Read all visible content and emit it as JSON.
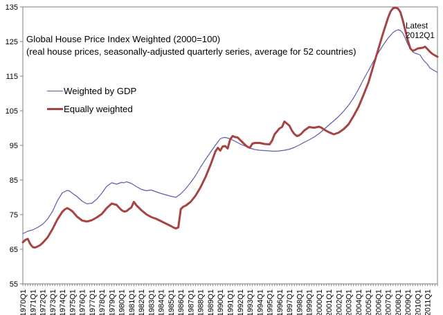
{
  "annotation": {
    "line1": "Latest",
    "line2": "2012Q1"
  },
  "colors": {
    "axis": "#7F7F7F",
    "text": "#000000",
    "background": "#FFFFFF"
  },
  "chart_data": {
    "type": "line",
    "title": "Global House Price Index Weighted (2000=100)",
    "subtitle": "(real house prices, seasonally-adjusted quarterly series, average for 52 countries)",
    "grid": false,
    "legend_position": "inside-top-left",
    "y_axis": {
      "min": 55,
      "max": 135,
      "step": 10,
      "ticks": [
        135,
        125,
        115,
        105,
        95,
        85,
        75,
        65,
        55
      ]
    },
    "x_axis": {
      "unit": "quarter",
      "first": "1970Q1",
      "last": "2012Q1",
      "total_quarters": 168,
      "label_every_quarters": 4,
      "tick_labels": [
        "1970Q1",
        "1971Q1",
        "1972Q1",
        "1973Q1",
        "1974Q1",
        "1975Q1",
        "1976Q1",
        "1977Q1",
        "1978Q1",
        "1979Q1",
        "1980Q1",
        "1981Q1",
        "1982Q1",
        "1983Q1",
        "1984Q1",
        "1985Q1",
        "1986Q1",
        "1987Q1",
        "1988Q1",
        "1989Q1",
        "1990Q1",
        "1991Q1",
        "1992Q1",
        "1993Q1",
        "1994Q1",
        "1995Q1",
        "1996Q1",
        "1997Q1",
        "1998Q1",
        "1999Q1",
        "2000Q1",
        "2001Q1",
        "2002Q1",
        "2003Q1",
        "2004Q1",
        "2005Q1",
        "2006Q1",
        "2007Q1",
        "2008Q1",
        "2009Q1",
        "2010Q1",
        "2011Q1"
      ]
    },
    "series": [
      {
        "name": "Weighted by GDP",
        "color": "#5B5BAD",
        "stroke_width": 1.2,
        "points": [
          [
            0,
            69.5
          ],
          [
            2,
            70.2
          ],
          [
            4,
            70.6
          ],
          [
            6,
            71.3
          ],
          [
            8,
            72.2
          ],
          [
            10,
            73.7
          ],
          [
            12,
            75.9
          ],
          [
            14,
            79.0
          ],
          [
            16,
            81.3
          ],
          [
            18,
            82.0
          ],
          [
            19,
            81.8
          ],
          [
            20,
            81.2
          ],
          [
            22,
            80.2
          ],
          [
            24,
            78.9
          ],
          [
            26,
            78.1
          ],
          [
            28,
            78.3
          ],
          [
            30,
            79.5
          ],
          [
            32,
            81.2
          ],
          [
            34,
            83.2
          ],
          [
            36,
            84.2
          ],
          [
            37,
            84.0
          ],
          [
            38,
            83.8
          ],
          [
            40,
            84.3
          ],
          [
            41,
            84.2
          ],
          [
            42,
            84.5
          ],
          [
            44,
            84.0
          ],
          [
            46,
            83.1
          ],
          [
            48,
            82.3
          ],
          [
            50,
            81.9
          ],
          [
            52,
            82.1
          ],
          [
            54,
            81.6
          ],
          [
            56,
            81.1
          ],
          [
            58,
            80.7
          ],
          [
            60,
            80.3
          ],
          [
            62,
            80.0
          ],
          [
            64,
            81.0
          ],
          [
            66,
            82.5
          ],
          [
            68,
            84.3
          ],
          [
            70,
            86.3
          ],
          [
            72,
            88.7
          ],
          [
            74,
            90.9
          ],
          [
            76,
            93.0
          ],
          [
            78,
            95.0
          ],
          [
            80,
            96.9
          ],
          [
            81,
            97.2
          ],
          [
            82,
            97.3
          ],
          [
            83,
            97.1
          ],
          [
            84,
            96.9
          ],
          [
            86,
            96.2
          ],
          [
            88,
            95.4
          ],
          [
            90,
            94.8
          ],
          [
            92,
            94.2
          ],
          [
            94,
            93.8
          ],
          [
            96,
            93.6
          ],
          [
            98,
            93.5
          ],
          [
            100,
            93.4
          ],
          [
            102,
            93.3
          ],
          [
            104,
            93.4
          ],
          [
            106,
            93.6
          ],
          [
            108,
            93.9
          ],
          [
            110,
            94.4
          ],
          [
            112,
            95.1
          ],
          [
            114,
            95.9
          ],
          [
            116,
            96.6
          ],
          [
            118,
            97.4
          ],
          [
            120,
            98.4
          ],
          [
            122,
            99.6
          ],
          [
            124,
            100.9
          ],
          [
            126,
            102.1
          ],
          [
            128,
            103.4
          ],
          [
            130,
            104.9
          ],
          [
            132,
            106.6
          ],
          [
            134,
            108.7
          ],
          [
            136,
            111.2
          ],
          [
            138,
            114.0
          ],
          [
            140,
            116.6
          ],
          [
            142,
            119.2
          ],
          [
            144,
            121.7
          ],
          [
            146,
            124.0
          ],
          [
            148,
            126.0
          ],
          [
            150,
            127.6
          ],
          [
            151,
            128.1
          ],
          [
            152,
            128.4
          ],
          [
            153,
            128.2
          ],
          [
            154,
            127.4
          ],
          [
            155,
            125.9
          ],
          [
            156,
            124.2
          ],
          [
            157,
            123.1
          ],
          [
            158,
            122.0
          ],
          [
            159,
            121.6
          ],
          [
            160,
            121.4
          ],
          [
            161,
            121.1
          ],
          [
            162,
            119.9
          ],
          [
            163,
            119.1
          ],
          [
            164,
            118.4
          ],
          [
            165,
            117.3
          ],
          [
            166,
            116.9
          ],
          [
            167,
            116.5
          ],
          [
            168,
            116.1
          ]
        ]
      },
      {
        "name": "Equally weighted",
        "color": "#A64343",
        "stroke_width": 3,
        "points": [
          [
            0,
            67.0
          ],
          [
            1,
            67.7
          ],
          [
            2,
            68.0
          ],
          [
            3,
            66.5
          ],
          [
            4,
            65.6
          ],
          [
            5,
            65.5
          ],
          [
            6,
            65.8
          ],
          [
            7,
            66.2
          ],
          [
            8,
            66.8
          ],
          [
            10,
            68.4
          ],
          [
            12,
            70.8
          ],
          [
            14,
            73.6
          ],
          [
            16,
            75.8
          ],
          [
            17,
            76.5
          ],
          [
            18,
            76.9
          ],
          [
            19,
            76.5
          ],
          [
            20,
            76.0
          ],
          [
            21,
            75.2
          ],
          [
            22,
            74.4
          ],
          [
            24,
            73.3
          ],
          [
            26,
            73.0
          ],
          [
            28,
            73.4
          ],
          [
            30,
            74.2
          ],
          [
            32,
            75.2
          ],
          [
            34,
            76.9
          ],
          [
            36,
            78.2
          ],
          [
            37,
            78.0
          ],
          [
            38,
            77.8
          ],
          [
            39,
            77.0
          ],
          [
            40,
            76.3
          ],
          [
            41,
            75.9
          ],
          [
            42,
            76.0
          ],
          [
            43,
            76.6
          ],
          [
            44,
            77.1
          ],
          [
            45,
            78.7
          ],
          [
            46,
            77.7
          ],
          [
            47,
            77.0
          ],
          [
            48,
            76.3
          ],
          [
            50,
            75.1
          ],
          [
            52,
            74.3
          ],
          [
            54,
            73.8
          ],
          [
            56,
            73.1
          ],
          [
            58,
            72.4
          ],
          [
            60,
            71.7
          ],
          [
            61,
            71.3
          ],
          [
            62,
            71.0
          ],
          [
            63,
            71.3
          ],
          [
            64,
            76.6
          ],
          [
            65,
            77.3
          ],
          [
            66,
            77.6
          ],
          [
            68,
            78.7
          ],
          [
            70,
            80.5
          ],
          [
            72,
            82.9
          ],
          [
            74,
            85.8
          ],
          [
            76,
            89.3
          ],
          [
            77,
            91.2
          ],
          [
            78,
            93.2
          ],
          [
            79,
            94.3
          ],
          [
            80,
            93.5
          ],
          [
            81,
            94.7
          ],
          [
            82,
            94.8
          ],
          [
            83,
            94.1
          ],
          [
            84,
            96.7
          ],
          [
            85,
            97.7
          ],
          [
            86,
            97.4
          ],
          [
            87,
            97.3
          ],
          [
            88,
            96.6
          ],
          [
            90,
            95.2
          ],
          [
            91,
            94.6
          ],
          [
            92,
            94.3
          ],
          [
            93,
            95.5
          ],
          [
            94,
            95.7
          ],
          [
            96,
            95.7
          ],
          [
            98,
            95.4
          ],
          [
            100,
            95.3
          ],
          [
            101,
            96.4
          ],
          [
            102,
            98.2
          ],
          [
            104,
            99.9
          ],
          [
            105,
            100.3
          ],
          [
            106,
            101.9
          ],
          [
            107,
            101.3
          ],
          [
            108,
            100.7
          ],
          [
            109,
            99.3
          ],
          [
            110,
            98.3
          ],
          [
            111,
            97.7
          ],
          [
            112,
            97.9
          ],
          [
            113,
            98.5
          ],
          [
            114,
            99.3
          ],
          [
            116,
            100.3
          ],
          [
            118,
            100.1
          ],
          [
            120,
            100.4
          ],
          [
            121,
            100.1
          ],
          [
            122,
            99.6
          ],
          [
            124,
            98.8
          ],
          [
            126,
            98.2
          ],
          [
            128,
            98.7
          ],
          [
            130,
            99.7
          ],
          [
            132,
            101.1
          ],
          [
            134,
            103.5
          ],
          [
            136,
            106.1
          ],
          [
            138,
            109.5
          ],
          [
            140,
            113.1
          ],
          [
            142,
            117.9
          ],
          [
            144,
            122.7
          ],
          [
            146,
            127.5
          ],
          [
            148,
            131.9
          ],
          [
            149,
            133.7
          ],
          [
            150,
            134.6
          ],
          [
            151,
            134.8
          ],
          [
            152,
            134.5
          ],
          [
            153,
            133.5
          ],
          [
            154,
            131.0
          ],
          [
            155,
            128.2
          ],
          [
            156,
            125.3
          ],
          [
            157,
            123.0
          ],
          [
            158,
            122.3
          ],
          [
            159,
            122.6
          ],
          [
            160,
            123.0
          ],
          [
            161,
            123.1
          ],
          [
            162,
            123.2
          ],
          [
            163,
            123.5
          ],
          [
            164,
            122.8
          ],
          [
            165,
            122.0
          ],
          [
            166,
            121.4
          ],
          [
            167,
            121.0
          ],
          [
            168,
            120.6
          ]
        ]
      }
    ],
    "annotation": "Latest 2012Q1"
  }
}
